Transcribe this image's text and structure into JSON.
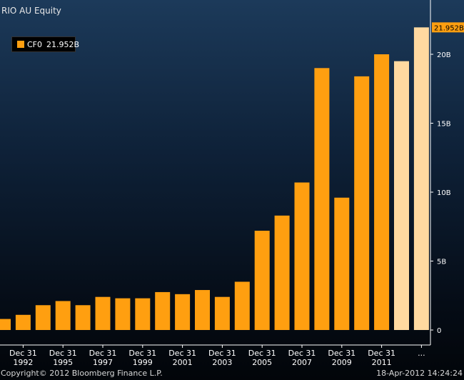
{
  "title": "RIO AU Equity",
  "legend": {
    "label": "CF0",
    "value": "21.952B"
  },
  "footer": {
    "copyright": "Copyright© 2012 Bloomberg Finance L.P.",
    "timestamp": "18-Apr-2012 14:24:24"
  },
  "colors": {
    "bar": "#ff9f10",
    "estimate": "#ffd9a0",
    "last_value_box": "#ff9f10"
  },
  "chart_data": {
    "type": "bar",
    "title": "RIO AU Equity",
    "series": [
      {
        "name": "CF0"
      }
    ],
    "values": [
      0.8,
      1.1,
      1.8,
      2.1,
      1.8,
      2.4,
      2.3,
      2.3,
      2.75,
      2.6,
      2.9,
      2.4,
      3.5,
      7.2,
      8.3,
      10.7,
      19.0,
      9.6,
      18.4,
      20.0,
      19.5,
      21.952
    ],
    "estimate_flags": [
      false,
      false,
      false,
      false,
      false,
      false,
      false,
      false,
      false,
      false,
      false,
      false,
      false,
      false,
      false,
      false,
      false,
      false,
      false,
      false,
      true,
      true
    ],
    "x_labels": [
      {
        "top": "Dec 31",
        "bottom": "1992"
      },
      {
        "top": "Dec 31",
        "bottom": "1995"
      },
      {
        "top": "Dec 31",
        "bottom": "1997"
      },
      {
        "top": "Dec 31",
        "bottom": "1999"
      },
      {
        "top": "Dec 31",
        "bottom": "2001"
      },
      {
        "top": "Dec 31",
        "bottom": "2003"
      },
      {
        "top": "Dec 31",
        "bottom": "2005"
      },
      {
        "top": "Dec 31",
        "bottom": "2007"
      },
      {
        "top": "Dec 31",
        "bottom": "2009"
      },
      {
        "top": "Dec 31",
        "bottom": "2011"
      },
      {
        "top": "...",
        "bottom": ""
      }
    ],
    "y_ticks": [
      {
        "value": 0,
        "label": "0"
      },
      {
        "value": 5,
        "label": "5B"
      },
      {
        "value": 10,
        "label": "10B"
      },
      {
        "value": 15,
        "label": "15B"
      },
      {
        "value": 20,
        "label": "20B"
      }
    ],
    "last_value_label": "21.952B",
    "ylim": [
      0,
      24
    ],
    "unit": "B",
    "grid": false
  }
}
